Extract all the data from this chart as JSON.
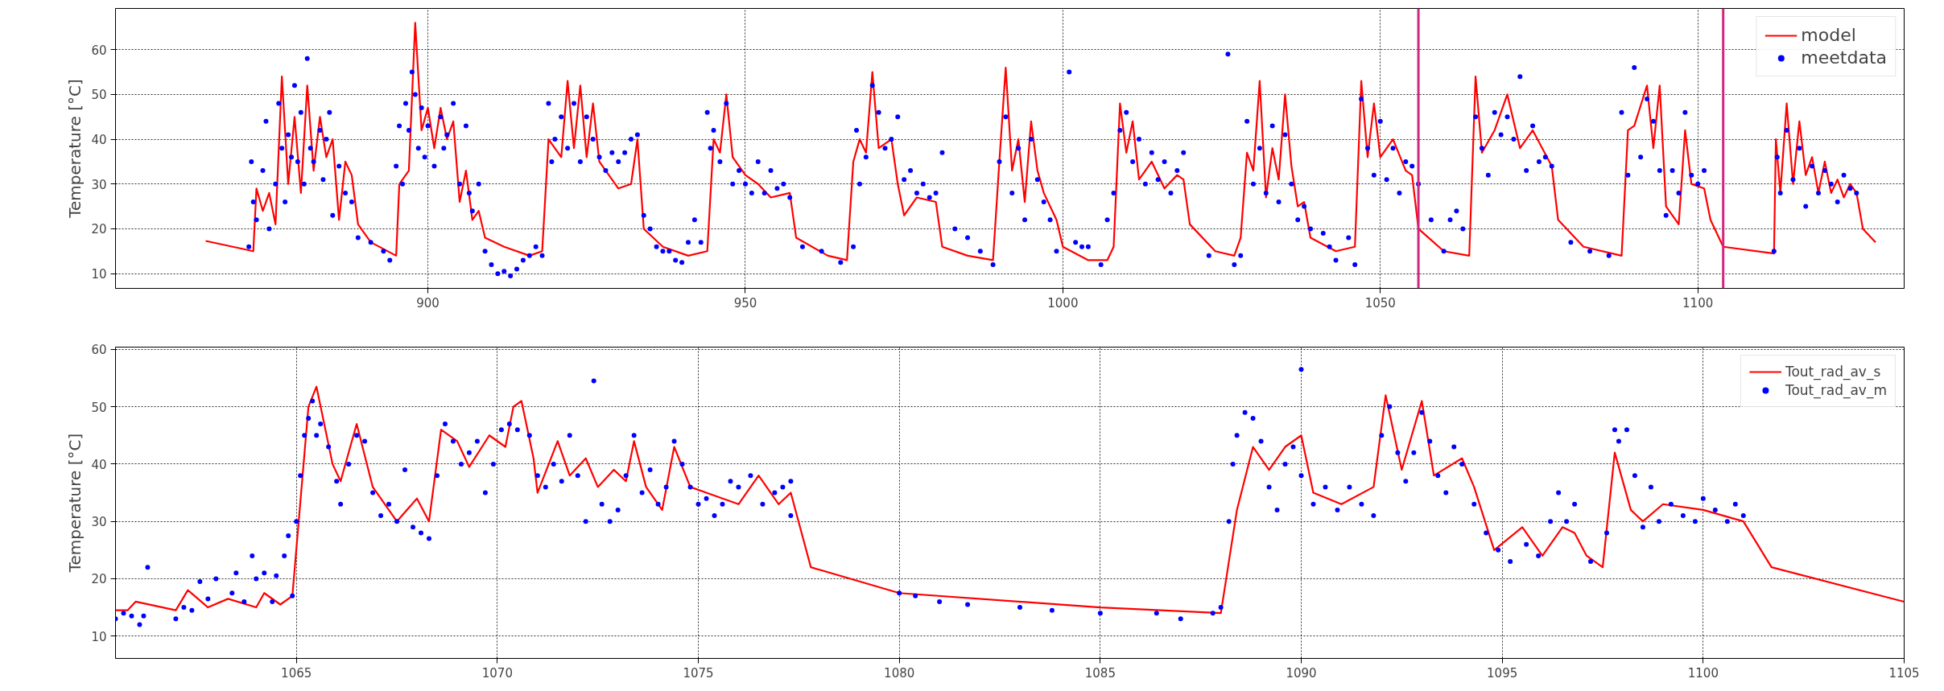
{
  "chart_data": [
    {
      "type": "line",
      "ylabel": "Temperature [°C]",
      "xlim": [
        850.8,
        1132.5
      ],
      "ylim": [
        6.7,
        69.2
      ],
      "xticks": [
        900,
        950,
        1000,
        1050,
        1100
      ],
      "yticks": [
        10,
        20,
        30,
        40,
        50,
        60
      ],
      "grid": true,
      "legend": "top right",
      "ref_lines": [
        {
          "axis": "x",
          "value": 1056,
          "color": "#d0267f"
        },
        {
          "axis": "x",
          "value": 1104,
          "color": "#d0267f"
        }
      ],
      "series": [
        {
          "name": "model",
          "color": "#ff0000",
          "x": [
            865,
            872.5,
            873,
            874,
            875,
            876,
            877,
            878,
            879,
            880,
            881,
            882,
            883,
            884,
            885,
            886,
            887,
            888,
            889,
            891,
            895,
            895.5,
            897,
            898,
            899,
            900,
            901,
            902,
            903,
            904,
            905,
            906,
            907,
            908,
            909,
            912,
            916,
            918,
            919,
            921,
            922,
            923,
            924,
            925,
            926,
            927,
            928,
            930,
            932,
            933,
            934,
            937,
            941,
            944,
            945,
            946,
            947,
            948,
            950,
            952,
            954,
            957,
            958,
            963,
            966,
            967,
            968,
            969,
            970,
            971,
            973,
            974,
            975,
            977,
            980,
            981,
            985,
            989,
            990,
            991,
            992,
            993,
            994,
            995,
            996,
            997,
            999,
            1000,
            1004,
            1007,
            1008,
            1009,
            1010,
            1011,
            1012,
            1014,
            1016,
            1018,
            1019,
            1020,
            1024,
            1027,
            1028,
            1029,
            1030,
            1031,
            1032,
            1033,
            1034,
            1035,
            1036,
            1037,
            1038,
            1039,
            1043,
            1046,
            1047,
            1048,
            1049,
            1050,
            1052,
            1054,
            1055,
            1056,
            1060,
            1064,
            1065,
            1066,
            1068,
            1070,
            1072,
            1074,
            1077,
            1078,
            1082,
            1088,
            1089,
            1090,
            1092,
            1093,
            1094,
            1095,
            1097,
            1098,
            1099,
            1101,
            1102,
            1104,
            1112,
            1112.3,
            1113,
            1114,
            1115,
            1116,
            1117,
            1118,
            1119,
            1120,
            1121,
            1122,
            1123,
            1124,
            1125,
            1126,
            1128
          ],
          "values": [
            17.3,
            15,
            29,
            24,
            28,
            21,
            54,
            30,
            45,
            28,
            52,
            33,
            45,
            36,
            40,
            22,
            35,
            32,
            21,
            17,
            14,
            30,
            33,
            66,
            42,
            47,
            38,
            47,
            40,
            44,
            26,
            33,
            22,
            24,
            18,
            16,
            14,
            15,
            40,
            36,
            53,
            38,
            52,
            36,
            48,
            35,
            33,
            29,
            30,
            40,
            20,
            16,
            14,
            15,
            40,
            37,
            50,
            36,
            32,
            30,
            27,
            28,
            18,
            14,
            13,
            35,
            40,
            37,
            55,
            38,
            40,
            30,
            23,
            27,
            26,
            16,
            14,
            13,
            35,
            56,
            33,
            40,
            26,
            44,
            33,
            28,
            22,
            16,
            13,
            13,
            16,
            48,
            37,
            44,
            31,
            35,
            29,
            32,
            31,
            21,
            15,
            14,
            18,
            37,
            33,
            53,
            27,
            38,
            31,
            50,
            34,
            25,
            26,
            18,
            15,
            16,
            53,
            36,
            48,
            36,
            40,
            33,
            32,
            20,
            15,
            14,
            54,
            37,
            42,
            50,
            38,
            42,
            34,
            22,
            16,
            14,
            42,
            43,
            52,
            38,
            52,
            25,
            21,
            42,
            30,
            29,
            22,
            16,
            14.5,
            40,
            28,
            48,
            30,
            44,
            32,
            36,
            28,
            35,
            28,
            31,
            27,
            30,
            28,
            20,
            17
          ]
        },
        {
          "name": "meetdata",
          "color": "#0000ff",
          "type": "scatter",
          "marker": "circle",
          "x": [
            871.8,
            872.2,
            872.5,
            873,
            874,
            874.5,
            875,
            876,
            876.5,
            877,
            877.5,
            878,
            878.5,
            879,
            879.5,
            880,
            880.5,
            881,
            881.5,
            882,
            883,
            883.5,
            884,
            884.5,
            885,
            886,
            887,
            888,
            889,
            891,
            893,
            894,
            895,
            895.5,
            896,
            896.5,
            897,
            897.5,
            898,
            898.5,
            899,
            899.5,
            900,
            901,
            902,
            902.5,
            903,
            904,
            905,
            906,
            906.5,
            907,
            908,
            909,
            910,
            911,
            912,
            913,
            914,
            915,
            916,
            917,
            918,
            919,
            919.5,
            920,
            921,
            922,
            923,
            924,
            925,
            926,
            927,
            928,
            929,
            930,
            931,
            932,
            933,
            934,
            935,
            936,
            937,
            938,
            939,
            940,
            941,
            942,
            943,
            944,
            944.5,
            945,
            946,
            947,
            948,
            949,
            950,
            951,
            952,
            953,
            954,
            955,
            956,
            957,
            959,
            962,
            965,
            967,
            967.5,
            968,
            969,
            970,
            971,
            972,
            973,
            974,
            975,
            976,
            977,
            978,
            979,
            980,
            981,
            983,
            985,
            987,
            989,
            990,
            991,
            992,
            993,
            994,
            995,
            996,
            997,
            998,
            999,
            1001,
            1002,
            1003,
            1004,
            1006,
            1007,
            1008,
            1009,
            1010,
            1011,
            1012,
            1013,
            1014,
            1015,
            1016,
            1017,
            1018,
            1019,
            1023,
            1026,
            1027,
            1028,
            1029,
            1030,
            1031,
            1032,
            1033,
            1034,
            1035,
            1036,
            1037,
            1038,
            1039,
            1041,
            1042,
            1043,
            1045,
            1046,
            1047,
            1048,
            1049,
            1050,
            1051,
            1052,
            1053,
            1054,
            1055,
            1056,
            1058,
            1060,
            1061,
            1062,
            1063,
            1065,
            1066,
            1067,
            1068,
            1069,
            1070,
            1071,
            1072,
            1073,
            1074,
            1075,
            1076,
            1077,
            1080,
            1083,
            1086,
            1088,
            1089,
            1090,
            1091,
            1092,
            1093,
            1094,
            1095,
            1096,
            1097,
            1098,
            1099,
            1100,
            1101,
            1112,
            1112.5,
            1113,
            1114,
            1115,
            1116,
            1117,
            1118,
            1119,
            1120,
            1121,
            1122,
            1123,
            1124,
            1125
          ],
          "values": [
            16,
            35,
            26,
            22,
            33,
            44,
            20,
            30,
            48,
            38,
            26,
            41,
            36,
            52,
            35,
            46,
            30,
            58,
            38,
            35,
            42,
            31,
            40,
            46,
            23,
            34,
            28,
            26,
            18,
            17,
            15,
            13,
            34,
            43,
            30,
            48,
            42,
            55,
            50,
            38,
            47,
            36,
            43,
            34,
            45,
            38,
            41,
            48,
            30,
            43,
            28,
            24,
            30,
            15,
            12,
            10,
            10.5,
            9.5,
            11,
            13,
            14,
            16,
            14,
            48,
            35,
            40,
            45,
            38,
            48,
            35,
            45,
            40,
            36,
            33,
            37,
            35,
            37,
            40,
            41,
            23,
            20,
            16,
            15,
            15,
            13,
            12.5,
            17,
            22,
            17,
            46,
            38,
            42,
            35,
            48,
            30,
            33,
            30,
            28,
            35,
            28,
            33,
            29,
            30,
            27,
            16,
            15,
            12.5,
            16,
            42,
            30,
            36,
            52,
            46,
            38,
            40,
            45,
            31,
            33,
            28,
            30,
            27,
            28,
            37,
            20,
            18,
            15,
            12,
            35,
            45,
            28,
            38,
            22,
            40,
            31,
            26,
            22,
            15,
            55,
            17,
            16,
            16,
            12,
            22,
            28,
            42,
            46,
            35,
            40,
            30,
            37,
            31,
            35,
            28,
            33,
            37,
            14,
            59,
            12,
            14,
            44,
            30,
            38,
            28,
            43,
            26,
            41,
            30,
            22,
            25,
            20,
            19,
            16,
            13,
            18,
            12,
            49,
            38,
            32,
            44,
            31,
            38,
            28,
            35,
            34,
            30,
            22,
            15,
            22,
            24,
            20,
            45,
            38,
            32,
            46,
            41,
            45,
            40,
            54,
            33,
            43,
            35,
            36,
            34,
            17,
            15,
            14,
            46,
            32,
            56,
            36,
            49,
            44,
            33,
            23,
            33,
            28,
            46,
            32,
            30,
            33,
            15,
            36,
            28,
            42,
            31,
            38,
            25,
            34,
            28,
            33,
            30,
            26,
            32,
            29,
            28
          ]
        }
      ]
    },
    {
      "type": "line",
      "ylabel": "Temperature [°C]",
      "xlim": [
        1060.5,
        1105
      ],
      "ylim": [
        6.1,
        60.4
      ],
      "xticks": [
        1065,
        1070,
        1075,
        1080,
        1085,
        1090,
        1095,
        1100,
        1105
      ],
      "yticks": [
        10,
        20,
        30,
        40,
        50,
        60
      ],
      "grid": true,
      "legend": "top right",
      "series": [
        {
          "name": "Tout_rad_av_s",
          "color": "#ff0000",
          "x": [
            1060.5,
            1060.8,
            1061,
            1062,
            1062.3,
            1062.8,
            1063.3,
            1064,
            1064.2,
            1064.6,
            1064.9,
            1065.3,
            1065.5,
            1065.9,
            1066.1,
            1066.5,
            1066.9,
            1067.5,
            1068,
            1068.3,
            1068.6,
            1069,
            1069.3,
            1069.8,
            1070.2,
            1070.4,
            1070.6,
            1070.9,
            1071,
            1071.5,
            1071.8,
            1072.2,
            1072.5,
            1072.9,
            1073.2,
            1073.4,
            1073.7,
            1074.1,
            1074.4,
            1074.8,
            1075.2,
            1076,
            1076.5,
            1077,
            1077.3,
            1077.8,
            1080,
            1085,
            1088,
            1088.4,
            1088.8,
            1089.2,
            1089.6,
            1090,
            1090.3,
            1091,
            1091.8,
            1092.1,
            1092.5,
            1093,
            1093.3,
            1094,
            1094.3,
            1094.8,
            1095.5,
            1096,
            1096.5,
            1096.8,
            1097.1,
            1097.5,
            1097.8,
            1098.2,
            1098.5,
            1099,
            1100,
            1101,
            1101.7,
            1105
          ],
          "values": [
            14.5,
            14.5,
            16,
            14.5,
            18,
            15,
            16.5,
            15,
            17.5,
            15.5,
            17,
            50,
            53.5,
            40,
            37,
            47,
            36,
            30,
            34,
            30,
            46,
            44,
            39.5,
            45,
            43,
            50,
            51,
            41,
            35,
            44,
            38,
            41,
            36,
            39,
            37,
            44,
            36,
            32,
            43,
            36,
            35,
            33,
            38,
            33,
            35,
            22,
            17.5,
            15,
            14,
            32,
            43,
            39,
            43,
            45,
            35,
            33,
            36,
            52,
            39,
            51,
            38,
            41,
            36,
            25,
            29,
            24,
            29,
            28,
            24,
            22,
            42,
            32,
            30,
            33,
            32,
            30,
            22,
            16
          ]
        },
        {
          "name": "Tout_rad_av_m",
          "color": "#0000ff",
          "type": "scatter",
          "marker": "circle",
          "x": [
            1060.5,
            1060.7,
            1060.9,
            1061.1,
            1061.2,
            1061.3,
            1062,
            1062.2,
            1062.4,
            1062.6,
            1062.8,
            1063,
            1063.4,
            1063.5,
            1063.7,
            1063.9,
            1064,
            1064.2,
            1064.4,
            1064.5,
            1064.7,
            1064.8,
            1064.9,
            1065,
            1065.1,
            1065.2,
            1065.3,
            1065.4,
            1065.5,
            1065.6,
            1065.8,
            1066,
            1066.1,
            1066.3,
            1066.5,
            1066.7,
            1066.9,
            1067.1,
            1067.3,
            1067.5,
            1067.7,
            1067.9,
            1068.1,
            1068.3,
            1068.5,
            1068.7,
            1068.9,
            1069.1,
            1069.3,
            1069.5,
            1069.7,
            1069.9,
            1070.1,
            1070.3,
            1070.5,
            1070.8,
            1071,
            1071.2,
            1071.4,
            1071.6,
            1071.8,
            1072,
            1072.2,
            1072.4,
            1072.6,
            1072.8,
            1073,
            1073.2,
            1073.4,
            1073.6,
            1073.8,
            1074,
            1074.2,
            1074.4,
            1074.6,
            1074.8,
            1075,
            1075.2,
            1075.4,
            1075.6,
            1075.8,
            1076,
            1076.3,
            1076.6,
            1076.9,
            1077.1,
            1077.3,
            1077.3,
            1080,
            1080.4,
            1081,
            1081.7,
            1083,
            1083.8,
            1085,
            1086.4,
            1087,
            1087.8,
            1088,
            1088.2,
            1088.3,
            1088.4,
            1088.6,
            1088.8,
            1089,
            1089.2,
            1089.4,
            1089.6,
            1089.8,
            1090,
            1090,
            1090.3,
            1090.6,
            1090.9,
            1091.2,
            1091.5,
            1091.8,
            1092,
            1092.2,
            1092.4,
            1092.6,
            1092.8,
            1093,
            1093.2,
            1093.4,
            1093.6,
            1093.8,
            1094,
            1094.3,
            1094.6,
            1094.9,
            1095.2,
            1095.6,
            1095.9,
            1096.2,
            1096.4,
            1096.6,
            1096.8,
            1097.2,
            1097.6,
            1097.8,
            1097.9,
            1098.1,
            1098.3,
            1098.5,
            1098.7,
            1098.9,
            1099.2,
            1099.5,
            1099.8,
            1100,
            1100.3,
            1100.6,
            1100.8,
            1101
          ],
          "values": [
            13,
            14,
            13.5,
            12,
            13.5,
            22,
            13,
            15,
            14.5,
            19.5,
            16.5,
            20,
            17.5,
            21,
            16,
            24,
            20,
            21,
            16,
            20.5,
            24,
            27.5,
            17,
            30,
            38,
            45,
            48,
            51,
            45,
            47,
            43,
            37,
            33,
            40,
            45,
            44,
            35,
            31,
            33,
            30,
            39,
            29,
            28,
            27,
            38,
            47,
            44,
            40,
            42,
            44,
            35,
            40,
            46,
            47,
            46,
            45,
            38,
            36,
            40,
            37,
            45,
            38,
            30,
            54.5,
            33,
            30,
            32,
            38,
            45,
            35,
            39,
            33,
            36,
            44,
            40,
            36,
            33,
            34,
            31,
            33,
            37,
            36,
            38,
            33,
            35,
            36,
            37,
            31,
            17.5,
            17,
            16,
            15.5,
            15,
            14.5,
            14,
            14,
            13,
            14,
            15,
            30,
            40,
            45,
            49,
            48,
            44,
            36,
            32,
            40,
            43,
            56.5,
            38,
            33,
            36,
            32,
            36,
            33,
            31,
            45,
            50,
            42,
            37,
            42,
            49,
            44,
            38,
            35,
            43,
            40,
            33,
            28,
            25,
            23,
            26,
            24,
            30,
            35,
            30,
            33,
            23,
            28,
            46,
            44,
            46,
            38,
            29,
            36,
            30,
            33,
            31,
            30,
            34,
            32,
            30,
            33,
            31
          ]
        }
      ]
    }
  ]
}
